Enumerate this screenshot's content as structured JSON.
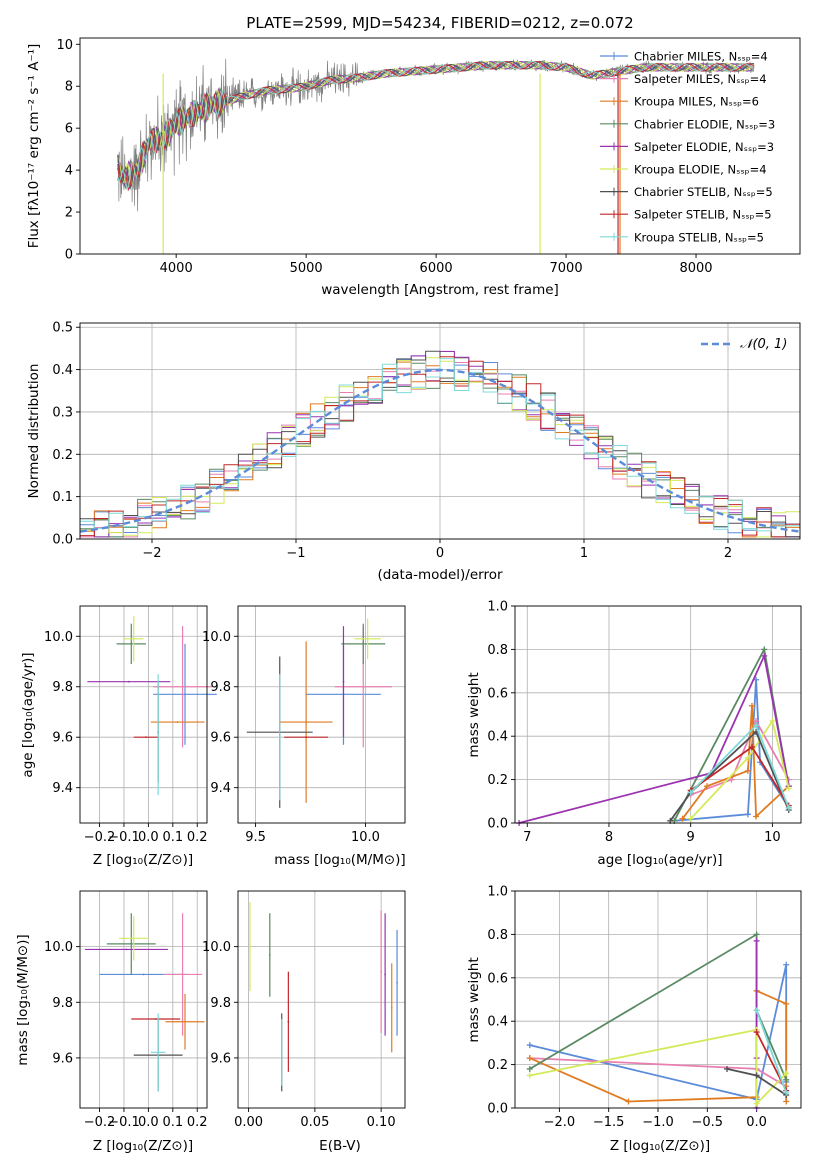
{
  "colors": {
    "chabrier_miles": "#5b8bd9",
    "salpeter_miles": "#e87fb0",
    "kroupa_miles": "#e07b22",
    "chabrier_elodie": "#5a8a62",
    "salpeter_elodie": "#9b33b0",
    "kroupa_elodie": "#d4ea5a",
    "chabrier_stelib": "#505050",
    "salpeter_stelib": "#c0282a",
    "kroupa_stelib": "#7fd9d9",
    "gray_spectrum": "#808080"
  },
  "chart_data": [
    {
      "id": "spectrum",
      "type": "line",
      "title": "PLATE=2599, MJD=54234, FIBERID=0212, z=0.072",
      "xlabel": "wavelength [Angstrom, rest frame]",
      "ylabel": "Flux [fλ10⁻¹⁷ erg cm⁻² s⁻¹ A⁻¹]",
      "xlim": [
        3260,
        8800
      ],
      "ylim": [
        0,
        10.3
      ],
      "xticks": [
        4000,
        5000,
        6000,
        7000,
        8000
      ],
      "yticks": [
        0,
        2,
        4,
        6,
        8,
        10
      ],
      "grid": false,
      "legend_position": "right",
      "legend": [
        "Chabrier MILES, Nₛₛₚ=4",
        "Salpeter MILES, Nₛₛₚ=4",
        "Kroupa MILES, Nₛₛₚ=6",
        "Chabrier ELODIE, Nₛₛₚ=3",
        "Salpeter ELODIE, Nₛₛₚ=3",
        "Kroupa ELODIE, Nₛₛₚ=4",
        "Chabrier STELIB, Nₛₛₚ=5",
        "Salpeter STELIB, Nₛₛₚ=5",
        "Kroupa STELIB, Nₛₛₚ=5"
      ],
      "continuum": [
        [
          3550,
          4.1
        ],
        [
          3600,
          3.6
        ],
        [
          3700,
          4.0
        ],
        [
          3800,
          5.4
        ],
        [
          3900,
          5.5
        ],
        [
          4000,
          6.2
        ],
        [
          4100,
          6.6
        ],
        [
          4200,
          6.9
        ],
        [
          4300,
          7.2
        ],
        [
          4400,
          7.3
        ],
        [
          4500,
          7.5
        ],
        [
          4700,
          7.8
        ],
        [
          4900,
          7.9
        ],
        [
          5000,
          8.0
        ],
        [
          5200,
          8.3
        ],
        [
          5400,
          8.4
        ],
        [
          5600,
          8.6
        ],
        [
          5800,
          8.7
        ],
        [
          6000,
          8.8
        ],
        [
          6200,
          8.9
        ],
        [
          6400,
          9.0
        ],
        [
          6600,
          9.0
        ],
        [
          6800,
          9.0
        ],
        [
          7000,
          8.9
        ],
        [
          7200,
          8.5
        ],
        [
          7400,
          8.7
        ],
        [
          7600,
          8.9
        ],
        [
          7800,
          8.9
        ],
        [
          8000,
          8.9
        ],
        [
          8200,
          8.9
        ],
        [
          8400,
          8.9
        ]
      ]
    },
    {
      "id": "residuals",
      "type": "histogram",
      "xlabel": "(data-model)/error",
      "ylabel": "Normed distribution",
      "xlim": [
        -2.5,
        2.5
      ],
      "ylim": [
        0,
        0.51
      ],
      "xticks": [
        -2,
        -1,
        0,
        1,
        2
      ],
      "yticks": [
        0.0,
        0.1,
        0.2,
        0.3,
        0.4,
        0.5
      ],
      "grid": true,
      "legend": [
        "𝒩(0, 1)"
      ],
      "legend_position": "top-right",
      "bin_edges_start": -2.5,
      "bin_width": 0.1
    },
    {
      "id": "age_vs_z",
      "type": "errorbar",
      "xlabel": "Z [log₁₀(Z/Z⊙)]",
      "ylabel": "age  [log₁₀(age/yr)]",
      "xlim": [
        -0.28,
        0.24
      ],
      "ylim": [
        9.26,
        10.12
      ],
      "xticks": [
        -0.2,
        -0.1,
        0.0,
        0.1,
        0.2
      ],
      "yticks": [
        9.4,
        9.6,
        9.8,
        10.0
      ],
      "points": [
        {
          "series": "chabrier_miles",
          "x": 0.15,
          "y": 9.77,
          "xerr": 0.13,
          "yerr": 0.2
        },
        {
          "series": "salpeter_miles",
          "x": 0.14,
          "y": 9.8,
          "xerr": 0.12,
          "yerr": 0.24
        },
        {
          "series": "kroupa_miles",
          "x": 0.12,
          "y": 9.66,
          "xerr": 0.11,
          "yerr": 0.0
        },
        {
          "series": "chabrier_elodie",
          "x": -0.07,
          "y": 9.97,
          "xerr": 0.06,
          "yerr": 0.08
        },
        {
          "series": "salpeter_elodie",
          "x": -0.08,
          "y": 9.82,
          "xerr": 0.17,
          "yerr": 0.0
        },
        {
          "series": "kroupa_elodie",
          "x": -0.06,
          "y": 9.99,
          "xerr": 0.04,
          "yerr": 0.09
        },
        {
          "series": "chabrier_stelib",
          "x": 0.04,
          "y": 9.62,
          "xerr": 0.0,
          "yerr": 0.2
        },
        {
          "series": "salpeter_stelib",
          "x": -0.01,
          "y": 9.6,
          "xerr": 0.05,
          "yerr": 0.0
        },
        {
          "series": "kroupa_stelib",
          "x": 0.04,
          "y": 9.61,
          "xerr": 0.0,
          "yerr": 0.24
        }
      ]
    },
    {
      "id": "age_vs_mass",
      "type": "errorbar",
      "xlabel": "mass [log₁₀(M/M⊙)]",
      "xlim": [
        9.42,
        10.18
      ],
      "ylim": [
        9.26,
        10.12
      ],
      "xticks": [
        9.5,
        10.0
      ],
      "yticks": [
        9.4,
        9.6,
        9.8,
        10.0
      ],
      "points": [
        {
          "series": "chabrier_miles",
          "x": 9.9,
          "y": 9.77,
          "xerr": 0.17,
          "yerr": 0.2
        },
        {
          "series": "salpeter_miles",
          "x": 9.99,
          "y": 9.8,
          "xerr": 0.13,
          "yerr": 0.24
        },
        {
          "series": "kroupa_miles",
          "x": 9.73,
          "y": 9.66,
          "xerr": 0.12,
          "yerr": 0.32
        },
        {
          "series": "chabrier_elodie",
          "x": 9.99,
          "y": 9.97,
          "xerr": 0.1,
          "yerr": 0.08
        },
        {
          "series": "salpeter_elodie",
          "x": 9.9,
          "y": 9.82,
          "xerr": 0.0,
          "yerr": 0.22
        },
        {
          "series": "kroupa_elodie",
          "x": 10.01,
          "y": 9.99,
          "xerr": 0.06,
          "yerr": 0.08
        },
        {
          "series": "chabrier_stelib",
          "x": 9.61,
          "y": 9.62,
          "xerr": 0.15,
          "yerr": 0.3
        },
        {
          "series": "salpeter_stelib",
          "x": 9.73,
          "y": 9.6,
          "xerr": 0.1,
          "yerr": 0.0
        },
        {
          "series": "kroupa_stelib",
          "x": 9.61,
          "y": 9.6,
          "xerr": 0.0,
          "yerr": 0.25
        }
      ]
    },
    {
      "id": "mass_weight_vs_age",
      "type": "line",
      "xlabel": "age  [log₁₀(age/yr)]",
      "ylabel": "mass weight",
      "xlim": [
        6.85,
        10.35
      ],
      "ylim": [
        0,
        1.0
      ],
      "xticks": [
        7,
        8,
        9,
        10
      ],
      "yticks": [
        0.0,
        0.2,
        0.4,
        0.6,
        0.8,
        1.0
      ],
      "grid": true,
      "series": [
        {
          "key": "chabrier_miles",
          "points": [
            [
              8.8,
              0.01
            ],
            [
              9.7,
              0.04
            ],
            [
              9.8,
              0.66
            ],
            [
              9.85,
              0.28
            ],
            [
              10.2,
              0.07
            ]
          ]
        },
        {
          "key": "salpeter_miles",
          "points": [
            [
              9.0,
              0.13
            ],
            [
              9.5,
              0.2
            ],
            [
              9.8,
              0.47
            ],
            [
              10.2,
              0.2
            ]
          ]
        },
        {
          "key": "kroupa_miles",
          "points": [
            [
              8.9,
              0.02
            ],
            [
              9.2,
              0.17
            ],
            [
              9.7,
              0.24
            ],
            [
              9.75,
              0.54
            ],
            [
              9.8,
              0.03
            ],
            [
              10.2,
              0.17
            ]
          ]
        },
        {
          "key": "chabrier_elodie",
          "points": [
            [
              8.8,
              0.01
            ],
            [
              9.9,
              0.8
            ],
            [
              10.2,
              0.17
            ]
          ]
        },
        {
          "key": "salpeter_elodie",
          "points": [
            [
              6.9,
              0.0
            ],
            [
              9.25,
              0.23
            ],
            [
              9.9,
              0.77
            ],
            [
              10.2,
              0.17
            ]
          ]
        },
        {
          "key": "kroupa_elodie",
          "points": [
            [
              9.0,
              0.02
            ],
            [
              9.7,
              0.3
            ],
            [
              10.0,
              0.47
            ],
            [
              10.2,
              0.16
            ]
          ]
        },
        {
          "key": "chabrier_stelib",
          "points": [
            [
              8.75,
              0.01
            ],
            [
              9.0,
              0.14
            ],
            [
              9.8,
              0.42
            ],
            [
              10.2,
              0.06
            ]
          ]
        },
        {
          "key": "salpeter_stelib",
          "points": [
            [
              9.0,
              0.15
            ],
            [
              9.75,
              0.35
            ],
            [
              10.2,
              0.08
            ]
          ]
        },
        {
          "key": "kroupa_stelib",
          "points": [
            [
              9.0,
              0.14
            ],
            [
              9.8,
              0.45
            ],
            [
              10.2,
              0.07
            ]
          ]
        }
      ]
    },
    {
      "id": "mass_vs_z",
      "type": "errorbar",
      "xlabel": "Z [log₁₀(Z/Z⊙)]",
      "ylabel": "mass [log₁₀(M/M⊙)]",
      "xlim": [
        -0.28,
        0.24
      ],
      "ylim": [
        9.42,
        10.2
      ],
      "xticks": [
        -0.2,
        -0.1,
        0.0,
        0.1,
        0.2
      ],
      "yticks": [
        9.6,
        9.8,
        10.0
      ],
      "points": [
        {
          "series": "chabrier_miles",
          "x": -0.02,
          "y": 9.9,
          "xerr": 0.18,
          "yerr": 0.0
        },
        {
          "series": "salpeter_miles",
          "x": 0.14,
          "y": 9.9,
          "xerr": 0.08,
          "yerr": 0.22
        },
        {
          "series": "kroupa_miles",
          "x": 0.15,
          "y": 9.73,
          "xerr": 0.08,
          "yerr": 0.1
        },
        {
          "series": "chabrier_elodie",
          "x": -0.07,
          "y": 10.01,
          "xerr": 0.1,
          "yerr": 0.11
        },
        {
          "series": "salpeter_elodie",
          "x": -0.09,
          "y": 9.99,
          "xerr": 0.17,
          "yerr": 0.0
        },
        {
          "series": "kroupa_elodie",
          "x": -0.06,
          "y": 10.03,
          "xerr": 0.06,
          "yerr": 0.08
        },
        {
          "series": "chabrier_stelib",
          "x": 0.04,
          "y": 9.61,
          "xerr": 0.1,
          "yerr": 0.13
        },
        {
          "series": "salpeter_stelib",
          "x": 0.03,
          "y": 9.74,
          "xerr": 0.1,
          "yerr": 0.0
        },
        {
          "series": "kroupa_stelib",
          "x": 0.04,
          "y": 9.62,
          "xerr": 0.03,
          "yerr": 0.14
        }
      ]
    },
    {
      "id": "mass_vs_ebv",
      "type": "errorbar",
      "xlabel": "E(B-V)",
      "xlim": [
        -0.008,
        0.118
      ],
      "ylim": [
        9.42,
        10.2
      ],
      "xticks": [
        0.0,
        0.05,
        0.1
      ],
      "yticks": [
        9.6,
        9.8,
        10.0
      ],
      "points": [
        {
          "series": "chabrier_miles",
          "x": 0.112,
          "y": 9.87,
          "xerr": 0.0,
          "yerr": 0.19
        },
        {
          "series": "salpeter_miles",
          "x": 0.1,
          "y": 9.91,
          "xerr": 0.0,
          "yerr": 0.22
        },
        {
          "series": "kroupa_miles",
          "x": 0.108,
          "y": 9.78,
          "xerr": 0.0,
          "yerr": 0.16
        },
        {
          "series": "chabrier_elodie",
          "x": 0.016,
          "y": 9.97,
          "xerr": 0.0,
          "yerr": 0.15
        },
        {
          "series": "salpeter_elodie",
          "x": 0.103,
          "y": 9.9,
          "xerr": 0.0,
          "yerr": 0.22
        },
        {
          "series": "kroupa_elodie",
          "x": 0.001,
          "y": 10.0,
          "xerr": 0.0,
          "yerr": 0.16
        },
        {
          "series": "chabrier_stelib",
          "x": 0.025,
          "y": 9.62,
          "xerr": 0.0,
          "yerr": 0.14
        },
        {
          "series": "salpeter_stelib",
          "x": 0.03,
          "y": 9.73,
          "xerr": 0.0,
          "yerr": 0.18
        },
        {
          "series": "kroupa_stelib",
          "x": 0.025,
          "y": 9.62,
          "xerr": 0.0,
          "yerr": 0.12
        }
      ]
    },
    {
      "id": "mass_weight_vs_z",
      "type": "line",
      "xlabel": "Z [log₁₀(Z/Z⊙)]",
      "ylabel": "mass weight",
      "xlim": [
        -2.45,
        0.45
      ],
      "ylim": [
        0,
        1.0
      ],
      "xticks": [
        -2.0,
        -1.5,
        -1.0,
        -0.5,
        0.0
      ],
      "yticks": [
        0.0,
        0.2,
        0.4,
        0.6,
        0.8,
        1.0
      ],
      "grid": true,
      "series": [
        {
          "key": "chabrier_miles",
          "points": [
            [
              -2.3,
              0.29
            ],
            [
              0.0,
              0.04
            ],
            [
              0.3,
              0.66
            ],
            [
              0.3,
              0.12
            ]
          ]
        },
        {
          "key": "salpeter_miles",
          "points": [
            [
              -2.3,
              0.23
            ],
            [
              0.0,
              0.18
            ],
            [
              0.3,
              0.1
            ]
          ]
        },
        {
          "key": "kroupa_miles",
          "points": [
            [
              -2.3,
              0.23
            ],
            [
              -1.3,
              0.03
            ],
            [
              0.0,
              0.05
            ],
            [
              0.0,
              0.54
            ],
            [
              0.3,
              0.48
            ],
            [
              0.3,
              0.03
            ]
          ]
        },
        {
          "key": "chabrier_elodie",
          "points": [
            [
              -2.3,
              0.18
            ],
            [
              0.0,
              0.8
            ],
            [
              0.0,
              0.45
            ],
            [
              0.3,
              0.13
            ]
          ]
        },
        {
          "key": "salpeter_elodie",
          "points": [
            [
              0.0,
              0.77
            ],
            [
              0.0,
              0.23
            ],
            [
              0.0,
              0.0
            ]
          ]
        },
        {
          "key": "kroupa_elodie",
          "points": [
            [
              -2.3,
              0.15
            ],
            [
              0.0,
              0.36
            ],
            [
              0.0,
              0.02
            ],
            [
              0.3,
              0.16
            ]
          ]
        },
        {
          "key": "chabrier_stelib",
          "points": [
            [
              -0.3,
              0.18
            ],
            [
              0.0,
              0.15
            ],
            [
              0.3,
              0.06
            ]
          ]
        },
        {
          "key": "salpeter_stelib",
          "points": [
            [
              0.0,
              0.35
            ],
            [
              0.3,
              0.08
            ]
          ]
        },
        {
          "key": "kroupa_stelib",
          "points": [
            [
              0.0,
              0.45
            ],
            [
              0.3,
              0.07
            ]
          ]
        }
      ]
    }
  ]
}
